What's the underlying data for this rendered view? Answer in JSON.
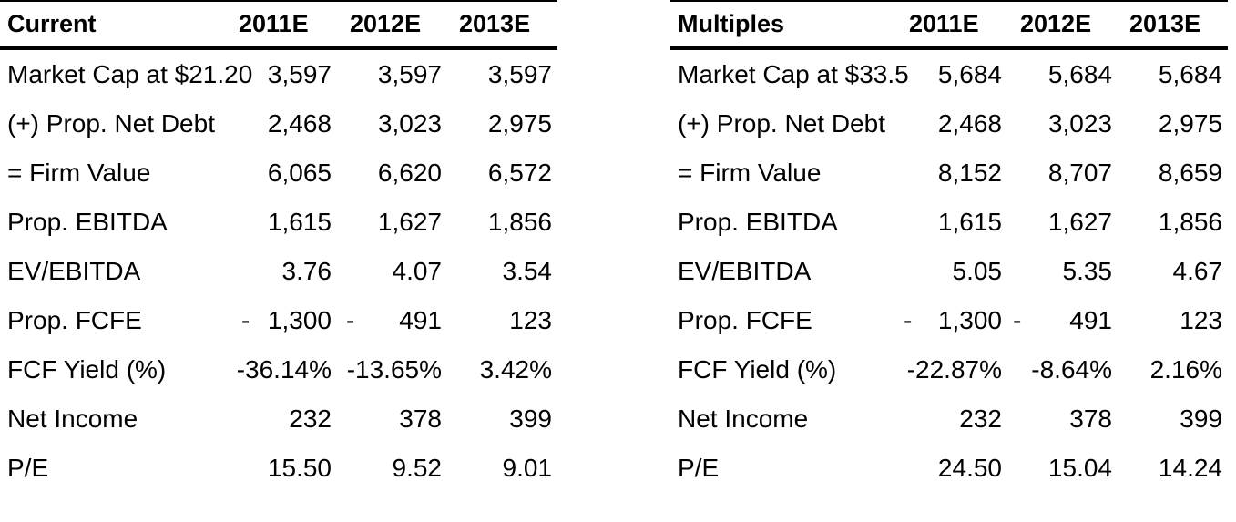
{
  "tables": [
    {
      "header": {
        "label": "Current",
        "cols": [
          "2011E",
          "2012E",
          "2013E"
        ]
      },
      "rows": [
        {
          "label": "Market Cap at $21.20",
          "values": [
            "3,597",
            "3,597",
            "3,597"
          ]
        },
        {
          "label": "(+) Prop. Net Debt",
          "values": [
            "2,468",
            "3,023",
            "2,975"
          ]
        },
        {
          "label": "= Firm Value",
          "values": [
            "6,065",
            "6,620",
            "6,572"
          ]
        },
        {
          "label": "Prop. EBITDA",
          "values": [
            "1,615",
            "1,627",
            "1,856"
          ]
        },
        {
          "label": "EV/EBITDA",
          "values": [
            "3.76",
            "4.07",
            "3.54"
          ]
        },
        {
          "label": "Prop. FCFE",
          "dashes": [
            "-",
            "-"
          ],
          "values": [
            "1,300",
            "491",
            "123"
          ]
        },
        {
          "label": "FCF Yield (%)",
          "values": [
            "-36.14%",
            "-13.65%",
            "3.42%"
          ]
        },
        {
          "label": "Net Income",
          "values": [
            "232",
            "378",
            "399"
          ]
        },
        {
          "label": "P/E",
          "values": [
            "15.50",
            "9.52",
            "9.01"
          ]
        }
      ]
    },
    {
      "header": {
        "label": "Multiples",
        "cols": [
          "2011E",
          "2012E",
          "2013E"
        ]
      },
      "rows": [
        {
          "label": "Market Cap at $33.5",
          "values": [
            "5,684",
            "5,684",
            "5,684"
          ]
        },
        {
          "label": "(+) Prop. Net Debt",
          "values": [
            "2,468",
            "3,023",
            "2,975"
          ]
        },
        {
          "label": "= Firm Value",
          "values": [
            "8,152",
            "8,707",
            "8,659"
          ]
        },
        {
          "label": "Prop. EBITDA",
          "values": [
            "1,615",
            "1,627",
            "1,856"
          ]
        },
        {
          "label": "EV/EBITDA",
          "values": [
            "5.05",
            "5.35",
            "4.67"
          ]
        },
        {
          "label": "Prop. FCFE",
          "dashes": [
            "-",
            "-"
          ],
          "values": [
            "1,300",
            "491",
            "123"
          ]
        },
        {
          "label": "FCF Yield (%)",
          "values": [
            "-22.87%",
            "-8.64%",
            "2.16%"
          ]
        },
        {
          "label": "Net Income",
          "values": [
            "232",
            "378",
            "399"
          ]
        },
        {
          "label": "P/E",
          "values": [
            "24.50",
            "15.04",
            "14.24"
          ]
        }
      ]
    }
  ]
}
